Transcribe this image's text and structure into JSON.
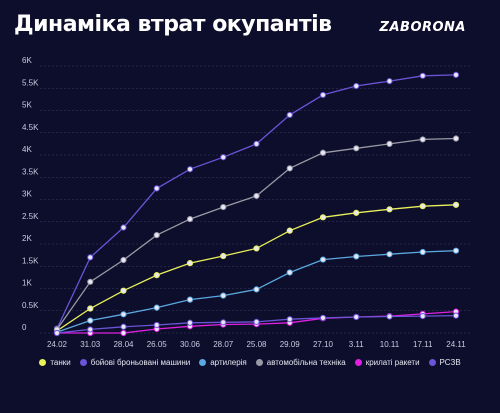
{
  "header": {
    "title": "Динаміка втрат окупантів",
    "logo": "ZABORONA"
  },
  "colors": {
    "background": "#0d0e2b",
    "grid": "#3a3c62"
  },
  "chart_data": {
    "type": "line",
    "title": "Динаміка втрат окупантів",
    "categories": [
      "24.02",
      "31.03",
      "28.04",
      "26.05",
      "30.06",
      "28.07",
      "25.08",
      "29.09",
      "27.10",
      "3.11",
      "10.11",
      "17.11",
      "24.11"
    ],
    "yticks": [
      "0",
      "0.5K",
      "1K",
      "1.5K",
      "2K",
      "2.5K",
      "3K",
      "3.5K",
      "4K",
      "4.5K",
      "5K",
      "5.5K",
      "6K"
    ],
    "ylim": [
      0,
      6000
    ],
    "grid": true,
    "legend_position": "bottom",
    "series": [
      {
        "name": "танки",
        "color": "#e8f05a",
        "values": [
          50,
          550,
          950,
          1300,
          1570,
          1730,
          1900,
          2300,
          2600,
          2700,
          2780,
          2850,
          2880
        ]
      },
      {
        "name": "бойові броньовані машини",
        "color": "#6b54d8",
        "values": [
          100,
          1700,
          2370,
          3250,
          3680,
          3950,
          4250,
          4900,
          5350,
          5550,
          5660,
          5780,
          5800
        ]
      },
      {
        "name": "артилерія",
        "color": "#5ba8e0",
        "values": [
          20,
          280,
          420,
          570,
          750,
          840,
          980,
          1360,
          1650,
          1720,
          1770,
          1820,
          1850
        ]
      },
      {
        "name": "автомобільна техніка",
        "color": "#9a9aa6",
        "values": [
          80,
          1150,
          1640,
          2200,
          2560,
          2830,
          3080,
          3700,
          4050,
          4150,
          4250,
          4350,
          4370
        ]
      },
      {
        "name": "крилаті ракети",
        "color": "#e020e0",
        "values": [
          0,
          0,
          0,
          90,
          150,
          190,
          200,
          230,
          330,
          360,
          380,
          430,
          480
        ]
      },
      {
        "name": "РСЗВ",
        "color": "#6b54d8",
        "values": [
          0,
          80,
          140,
          180,
          230,
          240,
          250,
          310,
          340,
          360,
          370,
          380,
          390
        ]
      }
    ]
  }
}
